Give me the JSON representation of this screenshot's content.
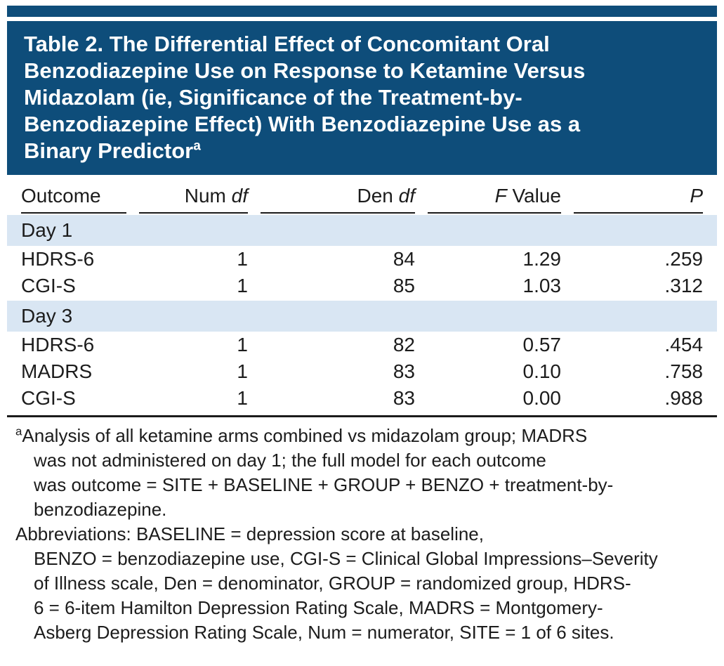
{
  "theme": {
    "accent_dark_blue": "#0e4d7a",
    "band_light_blue": "#d9e6f3",
    "text_color": "#1c1c1c"
  },
  "table": {
    "title": {
      "lines": [
        "Table 2. The Differential Effect of Concomitant Oral",
        "Benzodiazepine Use on Response to Ketamine Versus",
        "Midazolam (ie, Significance of the Treatment-by-",
        "Benzodiazepine Effect) With Benzodiazepine Use as a",
        "Binary Predictor"
      ],
      "superscript": "a"
    },
    "columns": [
      {
        "pre": "Outcome",
        "italic": "",
        "post": ""
      },
      {
        "pre": "Num ",
        "italic": "df",
        "post": ""
      },
      {
        "pre": "Den ",
        "italic": "df",
        "post": ""
      },
      {
        "pre": "",
        "italic": "F",
        "post": " Value"
      },
      {
        "pre": "",
        "italic": "P",
        "post": ""
      }
    ],
    "sections": [
      {
        "label": "Day 1",
        "rows": [
          {
            "outcome": "HDRS-6",
            "num_df": "1",
            "den_df": "84",
            "f_value": "1.29",
            "p": ".259"
          },
          {
            "outcome": "CGI-S",
            "num_df": "1",
            "den_df": "85",
            "f_value": "1.03",
            "p": ".312"
          }
        ]
      },
      {
        "label": "Day 3",
        "rows": [
          {
            "outcome": "HDRS-6",
            "num_df": "1",
            "den_df": "82",
            "f_value": "0.57",
            "p": ".454"
          },
          {
            "outcome": "MADRS",
            "num_df": "1",
            "den_df": "83",
            "f_value": "0.10",
            "p": ".758"
          },
          {
            "outcome": "CGI-S",
            "num_df": "1",
            "den_df": "83",
            "f_value": "0.00",
            "p": ".988"
          }
        ]
      }
    ]
  },
  "footnotes": {
    "note_a": {
      "superscript": "a",
      "lines": [
        "Analysis of all ketamine arms combined vs midazolam group; MADRS",
        "was not administered on day 1; the full model for each outcome",
        "was outcome = SITE + BASELINE + GROUP + BENZO + treatment-by-",
        "benzodiazepine."
      ]
    },
    "abbreviations": {
      "lines": [
        "Abbreviations: BASELINE = depression score at baseline,",
        "BENZO = benzodiazepine use, CGI-S = Clinical Global Impressions–Severity",
        "of Illness scale, Den = denominator, GROUP = randomized group, HDRS-",
        "6 = 6-item Hamilton Depression Rating Scale, MADRS = Montgomery-",
        "Asberg Depression Rating Scale, Num = numerator, SITE = 1 of 6 sites."
      ]
    }
  }
}
